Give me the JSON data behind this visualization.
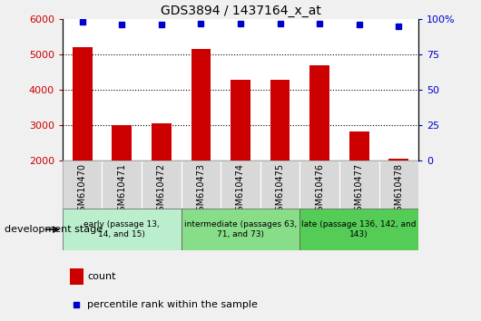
{
  "title": "GDS3894 / 1437164_x_at",
  "categories": [
    "GSM610470",
    "GSM610471",
    "GSM610472",
    "GSM610473",
    "GSM610474",
    "GSM610475",
    "GSM610476",
    "GSM610477",
    "GSM610478"
  ],
  "counts": [
    5200,
    3000,
    3050,
    5150,
    4280,
    4290,
    4700,
    2820,
    2060
  ],
  "percentile_ranks": [
    98,
    96,
    96,
    97,
    97,
    97,
    97,
    96,
    95
  ],
  "ylim_left": [
    2000,
    6000
  ],
  "ylim_right": [
    0,
    100
  ],
  "yticks_left": [
    2000,
    3000,
    4000,
    5000,
    6000
  ],
  "yticks_right": [
    0,
    25,
    50,
    75,
    100
  ],
  "bar_color": "#cc0000",
  "dot_color": "#0000cc",
  "bar_width": 0.5,
  "groups": [
    {
      "label": "early (passage 13,\n14, and 15)",
      "indices": [
        0,
        1,
        2
      ],
      "color": "#bbeecc"
    },
    {
      "label": "intermediate (passages 63,\n71, and 73)",
      "indices": [
        3,
        4,
        5
      ],
      "color": "#88dd88"
    },
    {
      "label": "late (passage 136, 142, and\n143)",
      "indices": [
        6,
        7,
        8
      ],
      "color": "#55cc55"
    }
  ],
  "group_label": "development stage",
  "legend_count_label": "count",
  "legend_percentile_label": "percentile rank within the sample",
  "background_color": "#f0f0f0",
  "ax_background": "#ffffff",
  "tick_bg_color": "#d8d8d8",
  "tick_label_color_left": "#cc0000",
  "tick_label_color_right": "#0000cc",
  "grid_linestyle": "dotted"
}
